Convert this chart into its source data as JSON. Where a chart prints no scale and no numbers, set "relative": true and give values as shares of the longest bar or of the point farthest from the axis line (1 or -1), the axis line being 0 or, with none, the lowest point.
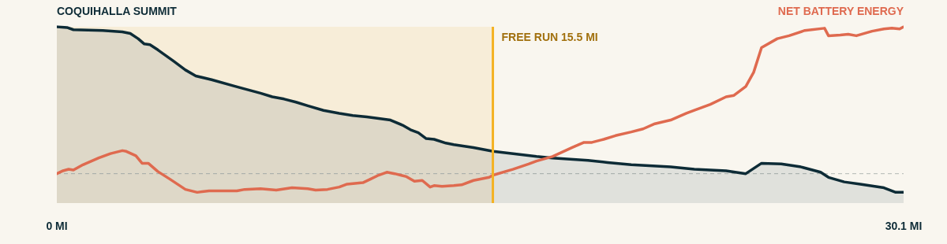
{
  "chart_data": {
    "type": "line",
    "relative": true,
    "xlim": [
      0,
      30.1
    ],
    "xticks": [
      {
        "value": 0,
        "label": "0 MI"
      },
      {
        "value": 30.1,
        "label": "30.1 MI"
      }
    ],
    "grid": false,
    "legend": false,
    "marker": "none",
    "line_style": "solid",
    "bands": [
      {
        "axis": "x",
        "from": 0,
        "to": 15.5,
        "color": "#f7edd8"
      }
    ],
    "ref_lines": [
      {
        "axis": "x",
        "value": 15.5,
        "label": "FREE RUN 15.5 MI",
        "color": "#f4b223"
      },
      {
        "axis": "y",
        "value": 0,
        "color": "#b3b8b4",
        "line_style": "dashed"
      }
    ],
    "series": [
      {
        "name": "COQUIHALLA SUMMIT",
        "type": "area",
        "color": "#0d2b36",
        "x": [
          0,
          0.36,
          0.59,
          1.63,
          2.33,
          2.61,
          2.89,
          3.11,
          3.31,
          3.59,
          4.15,
          4.57,
          4.94,
          5.5,
          6.26,
          6.54,
          7.24,
          7.66,
          8.08,
          8.5,
          8.92,
          9.48,
          10.04,
          10.52,
          11.02,
          11.44,
          11.86,
          12.29,
          12.57,
          12.85,
          13.13,
          13.41,
          13.83,
          14.11,
          14.81,
          15.51,
          17.05,
          17.62,
          18.88,
          19.58,
          20.42,
          21.82,
          22.66,
          23.79,
          24.49,
          25.05,
          25.75,
          26.45,
          27.15,
          27.43,
          27.99,
          28.56,
          29.4,
          29.82,
          30.1
        ],
        "values": [
          1.0,
          0.995,
          0.98,
          0.975,
          0.965,
          0.954,
          0.919,
          0.883,
          0.878,
          0.843,
          0.766,
          0.706,
          0.665,
          0.64,
          0.599,
          0.584,
          0.548,
          0.523,
          0.508,
          0.487,
          0.462,
          0.431,
          0.411,
          0.396,
          0.386,
          0.376,
          0.365,
          0.33,
          0.299,
          0.279,
          0.239,
          0.234,
          0.208,
          0.198,
          0.178,
          0.152,
          0.117,
          0.107,
          0.091,
          0.076,
          0.061,
          0.046,
          0.03,
          0.02,
          0.0,
          0.071,
          0.066,
          0.046,
          0.01,
          -0.025,
          -0.056,
          -0.071,
          -0.096,
          -0.127,
          -0.127
        ]
      },
      {
        "name": "NET BATTERY ENERGY",
        "type": "line",
        "color": "#df6a4f",
        "x": [
          0,
          0.22,
          0.42,
          0.59,
          0.93,
          1.49,
          1.91,
          2.33,
          2.47,
          2.81,
          3.03,
          3.25,
          3.59,
          4.01,
          4.57,
          4.99,
          5.41,
          5.97,
          6.4,
          6.68,
          7.24,
          7.8,
          8.36,
          8.92,
          9.2,
          9.62,
          10.04,
          10.32,
          10.6,
          10.88,
          11.16,
          11.44,
          11.73,
          12.01,
          12.43,
          12.71,
          12.99,
          13.27,
          13.41,
          13.69,
          14.11,
          14.39,
          14.81,
          15.37,
          15.51,
          16.21,
          16.77,
          17.05,
          17.62,
          18.32,
          18.74,
          19.02,
          19.44,
          19.86,
          20.42,
          20.84,
          21.26,
          21.82,
          22.38,
          22.66,
          23.23,
          23.79,
          24.07,
          24.49,
          24.77,
          25.05,
          25.61,
          26.03,
          26.59,
          27.29,
          27.43,
          27.85,
          28.13,
          28.42,
          28.98,
          29.4,
          29.68,
          29.96,
          30.1
        ],
        "values": [
          0,
          0.02,
          0.03,
          0.025,
          0.061,
          0.107,
          0.137,
          0.157,
          0.152,
          0.122,
          0.071,
          0.071,
          0.015,
          -0.036,
          -0.107,
          -0.127,
          -0.117,
          -0.117,
          -0.117,
          -0.107,
          -0.102,
          -0.112,
          -0.096,
          -0.102,
          -0.112,
          -0.107,
          -0.091,
          -0.071,
          -0.066,
          -0.061,
          -0.036,
          -0.01,
          0.01,
          0.0,
          -0.02,
          -0.051,
          -0.046,
          -0.091,
          -0.081,
          -0.086,
          -0.081,
          -0.076,
          -0.046,
          -0.025,
          -0.01,
          0.03,
          0.066,
          0.086,
          0.117,
          0.178,
          0.213,
          0.213,
          0.234,
          0.259,
          0.284,
          0.305,
          0.34,
          0.365,
          0.411,
          0.431,
          0.472,
          0.523,
          0.533,
          0.594,
          0.69,
          0.858,
          0.919,
          0.939,
          0.975,
          0.99,
          0.939,
          0.944,
          0.949,
          0.939,
          0.97,
          0.985,
          0.99,
          0.985,
          1.0
        ]
      }
    ]
  }
}
